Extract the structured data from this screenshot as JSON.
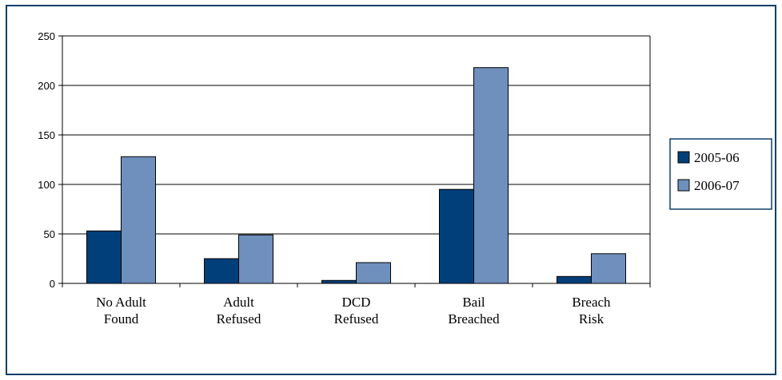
{
  "chart_data": {
    "type": "bar",
    "categories": [
      [
        "No Adult",
        "Found"
      ],
      [
        "Adult",
        "Refused"
      ],
      [
        "DCD",
        "Refused"
      ],
      [
        "Bail",
        "Breached"
      ],
      [
        "Breach",
        "Risk"
      ]
    ],
    "series": [
      {
        "name": "2005-06",
        "color": "#003f7a",
        "values": [
          53,
          25,
          3,
          95,
          7
        ]
      },
      {
        "name": "2006-07",
        "color": "#6f8fbd",
        "values": [
          128,
          49,
          21,
          218,
          30
        ]
      }
    ],
    "ylim": [
      0,
      250
    ],
    "yticks": [
      0,
      50,
      100,
      150,
      200,
      250
    ],
    "gridlines": true,
    "legend_position": "right"
  }
}
